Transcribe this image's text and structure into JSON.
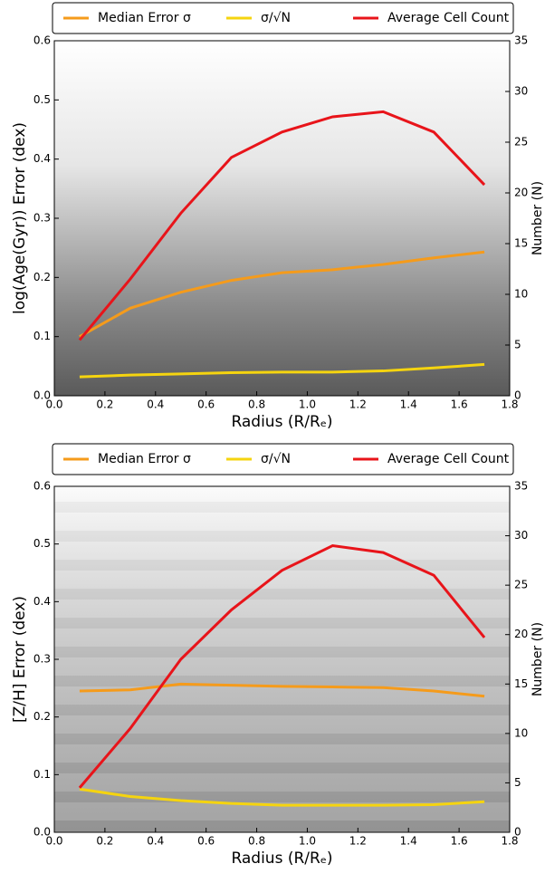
{
  "chart_data": [
    {
      "type": "line",
      "xlabel": "Radius (R/Rₑ)",
      "ylabel": "log(Age(Gyr)) Error (dex)",
      "y2label": "Number (N)",
      "x": [
        0.1,
        0.3,
        0.5,
        0.7,
        0.9,
        1.1,
        1.3,
        1.5,
        1.7
      ],
      "series": [
        {
          "name": "Median Error σ",
          "color": "#f59b1b",
          "values": [
            0.1,
            0.148,
            0.175,
            0.195,
            0.208,
            0.213,
            0.222,
            0.233,
            0.243
          ]
        },
        {
          "name": "σ/√N",
          "color": "#f5d40f",
          "values": [
            0.032,
            0.035,
            0.037,
            0.039,
            0.04,
            0.04,
            0.042,
            0.047,
            0.053
          ]
        },
        {
          "name": "Average Cell Count",
          "color": "#e8141a",
          "axis": "y2",
          "values": [
            5.5,
            11.5,
            18,
            23.5,
            26,
            27.5,
            28,
            26,
            20.8
          ]
        }
      ],
      "xlim": [
        0,
        1.8
      ],
      "xticks": [
        {
          "value": 0,
          "label": "0.0"
        },
        0.2,
        0.4,
        0.6,
        0.8,
        {
          "value": 1,
          "label": "1.0"
        },
        1.2,
        1.4,
        1.6,
        1.8
      ],
      "ylim": [
        0,
        0.6
      ],
      "yticks": [
        {
          "value": 0,
          "label": "0.0"
        },
        0.1,
        0.2,
        0.3,
        0.4,
        0.5,
        0.6
      ],
      "y2lim": [
        0,
        35
      ],
      "y2ticks": [
        0,
        5,
        10,
        15,
        20,
        25,
        30,
        35
      ],
      "legend": "top"
    },
    {
      "type": "line",
      "xlabel": "Radius (R/Rₑ)",
      "ylabel": "[Z/H] Error (dex)",
      "y2label": "Number (N)",
      "x": [
        0.1,
        0.3,
        0.5,
        0.7,
        0.9,
        1.1,
        1.3,
        1.5,
        1.7
      ],
      "series": [
        {
          "name": "Median Error σ",
          "color": "#f59b1b",
          "values": [
            0.245,
            0.247,
            0.257,
            0.255,
            0.253,
            0.252,
            0.251,
            0.245,
            0.236
          ]
        },
        {
          "name": "σ/√N",
          "color": "#f5d40f",
          "values": [
            0.075,
            0.062,
            0.055,
            0.05,
            0.047,
            0.047,
            0.047,
            0.048,
            0.053
          ]
        },
        {
          "name": "Average Cell Count",
          "color": "#e8141a",
          "axis": "y2",
          "values": [
            4.5,
            10.5,
            17.5,
            22.5,
            26.5,
            29,
            28.3,
            26,
            19.7
          ]
        }
      ],
      "xlim": [
        0,
        1.8
      ],
      "xticks": [
        {
          "value": 0,
          "label": "0.0"
        },
        0.2,
        0.4,
        0.6,
        0.8,
        {
          "value": 1,
          "label": "1.0"
        },
        1.2,
        1.4,
        1.6,
        1.8
      ],
      "ylim": [
        0,
        0.6
      ],
      "yticks": [
        {
          "value": 0,
          "label": "0.0"
        },
        0.1,
        0.2,
        0.3,
        0.4,
        0.5,
        0.6
      ],
      "y2lim": [
        0,
        35
      ],
      "y2ticks": [
        0,
        5,
        10,
        15,
        20,
        25,
        30,
        35
      ],
      "legend": "top"
    }
  ]
}
